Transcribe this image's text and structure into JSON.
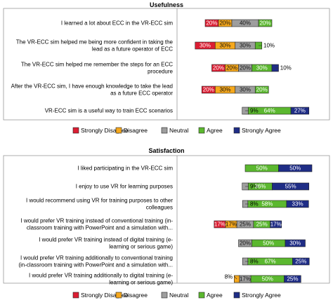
{
  "colors": {
    "Strongly Disagree": "#dc1e33",
    "Disagree": "#f6a81c",
    "Neutral": "#9e9e9e",
    "Agree": "#5bb82f",
    "Strongly Agree": "#1f2d86"
  },
  "chart_data": [
    {
      "type": "bar",
      "stacked": true,
      "orientation": "horizontal",
      "title": "Usefulness",
      "legend": [
        "Strongly Disagree",
        "Disagree",
        "Neutral",
        "Agree",
        "Strongly Agree"
      ],
      "legend_placement": "bottom",
      "categories": [
        "I learned a lot about ECC in the VR-ECC sim",
        "The VR-ECC sim helped me being more confident in taking the lead as a future operator of ECC",
        "The VR-ECC sim helped me remember the steps for an ECC procedure",
        "After the VR-ECC sim, I have enough knowledge to take the lead as a future ECC operator",
        "VR-ECC sim is a useful way to train ECC scenarios"
      ],
      "category_lines": [
        [
          "I learned a lot about ECC in the VR-ECC sim"
        ],
        [
          "The VR-ECC sim helped me being more confident in taking the",
          "lead as a future operator of ECC"
        ],
        [
          "The VR-ECC sim helped me remember the steps for an ECC",
          "procedure"
        ],
        [
          "After the VR-ECC sim, I have enough knowledge to take the lead",
          "as a future ECC operator"
        ],
        [
          "VR-ECC sim is a useful way to train ECC scenarios"
        ]
      ],
      "series": [
        {
          "name": "Strongly Disagree",
          "values": [
            20,
            30,
            20,
            20,
            0
          ]
        },
        {
          "name": "Disagree",
          "values": [
            20,
            30,
            20,
            30,
            0
          ]
        },
        {
          "name": "Neutral",
          "values": [
            40,
            30,
            20,
            30,
            9
          ]
        },
        {
          "name": "Agree",
          "values": [
            20,
            10,
            30,
            20,
            64
          ]
        },
        {
          "name": "Strongly Agree",
          "values": [
            0,
            0,
            10,
            0,
            27
          ]
        }
      ],
      "labels": [
        [
          "20%",
          "20%",
          "40%",
          "20%",
          ""
        ],
        [
          "30%",
          "30%",
          "30%",
          "10%",
          ""
        ],
        [
          "20%",
          "20%",
          "20%",
          "30%",
          "10%"
        ],
        [
          "20%",
          "30%",
          "30%",
          "20%",
          ""
        ],
        [
          "",
          "",
          "9%",
          "64%",
          "27%"
        ]
      ]
    },
    {
      "type": "bar",
      "stacked": true,
      "orientation": "horizontal",
      "title": "Satisfaction",
      "legend": [
        "Strongly Disagree",
        "Disagree",
        "Neutral",
        "Agree",
        "Strongly Agree"
      ],
      "legend_placement": "bottom",
      "categories": [
        "I liked participating in the VR-ECC sim",
        "I enjoy to use VR for learning purposes",
        "I would recommend using VR for training purposes to other colleagues",
        "I would prefer VR training instead of conventional training (in-classroom training with PowerPoint and a simulation with...",
        "I would prefer VR training instead of digital training (e-learning or serious game)",
        "I would prefer VR training additionally to conventional training (in-classroom training with PowerPoint and a simulation with...",
        "I would prefer VR training additionally to digital training (e-learning or serious game)"
      ],
      "category_lines": [
        [
          "I liked participating in the VR-ECC sim"
        ],
        [
          "I enjoy to use VR for learning purposes"
        ],
        [
          "I would recommend using VR for training purposes to other",
          "colleagues"
        ],
        [
          "I would prefer VR training instead of conventional training (in-",
          "classroom training with PowerPoint and a simulation with..."
        ],
        [
          "I would prefer VR training instead of digital training (e-",
          "learning or serious game)"
        ],
        [
          "I would prefer VR training additionally to conventional training",
          "(in-classroom training with PowerPoint and a simulation with..."
        ],
        [
          "I would prefer VR training additionally to digital training (e-",
          "learning or serious game)"
        ]
      ],
      "series": [
        {
          "name": "Strongly Disagree",
          "values": [
            0,
            0,
            0,
            17,
            0,
            0,
            0
          ]
        },
        {
          "name": "Disagree",
          "values": [
            0,
            0,
            0,
            17,
            0,
            0,
            8
          ]
        },
        {
          "name": "Neutral",
          "values": [
            0,
            9,
            8,
            25,
            20,
            8,
            17
          ]
        },
        {
          "name": "Agree",
          "values": [
            50,
            36,
            58,
            25,
            50,
            67,
            50
          ]
        },
        {
          "name": "Strongly Agree",
          "values": [
            50,
            55,
            33,
            17,
            30,
            25,
            25
          ]
        }
      ],
      "labels": [
        [
          "",
          "",
          "",
          "50%",
          "50%"
        ],
        [
          "",
          "",
          "9%",
          "36%",
          "55%"
        ],
        [
          "",
          "",
          "8%",
          "58%",
          "33%"
        ],
        [
          "17%",
          "17%",
          "25%",
          "25%",
          "17%"
        ],
        [
          "",
          "",
          "20%",
          "50%",
          "30%"
        ],
        [
          "",
          "",
          "8%",
          "67%",
          "25%"
        ],
        [
          "",
          "8%",
          "17%",
          "50%",
          "25%"
        ]
      ]
    }
  ]
}
